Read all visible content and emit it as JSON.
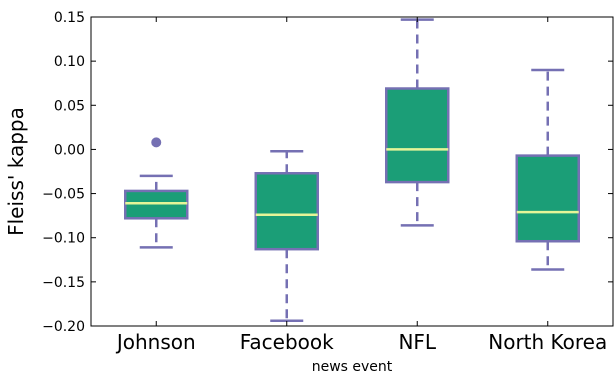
{
  "chart_data": {
    "type": "box",
    "xlabel": "news event",
    "ylabel": "Fleiss' kappa",
    "ylim": [
      -0.2,
      0.15
    ],
    "yticks": [
      0.15,
      0.1,
      0.05,
      0.0,
      -0.05,
      -0.1,
      -0.15,
      -0.2
    ],
    "ytick_labels": [
      "0.15",
      "0.10",
      "0.05",
      "0.00",
      "−0.05",
      "−0.10",
      "−0.15",
      "−0.20"
    ],
    "grid": false,
    "categories": [
      "Johnson",
      "Facebook",
      "NFL",
      "North Korea"
    ],
    "boxes": [
      {
        "category": "Johnson",
        "whisker_low": -0.111,
        "q1": -0.078,
        "median": -0.061,
        "q3": -0.047,
        "whisker_high": -0.03,
        "outliers": [
          0.008
        ]
      },
      {
        "category": "Facebook",
        "whisker_low": -0.194,
        "q1": -0.113,
        "median": -0.074,
        "q3": -0.027,
        "whisker_high": -0.002,
        "outliers": []
      },
      {
        "category": "NFL",
        "whisker_low": -0.086,
        "q1": -0.037,
        "median": 0.0,
        "q3": 0.069,
        "whisker_high": 0.147,
        "outliers": []
      },
      {
        "category": "North Korea",
        "whisker_low": -0.136,
        "q1": -0.104,
        "median": -0.071,
        "q3": -0.007,
        "whisker_high": 0.09,
        "outliers": []
      }
    ],
    "colors": {
      "box_fill": "#1b9e77",
      "box_edge": "#7570b3",
      "median": "#e6f598",
      "whisker": "#7570b3",
      "flier": "#7570b3"
    }
  }
}
